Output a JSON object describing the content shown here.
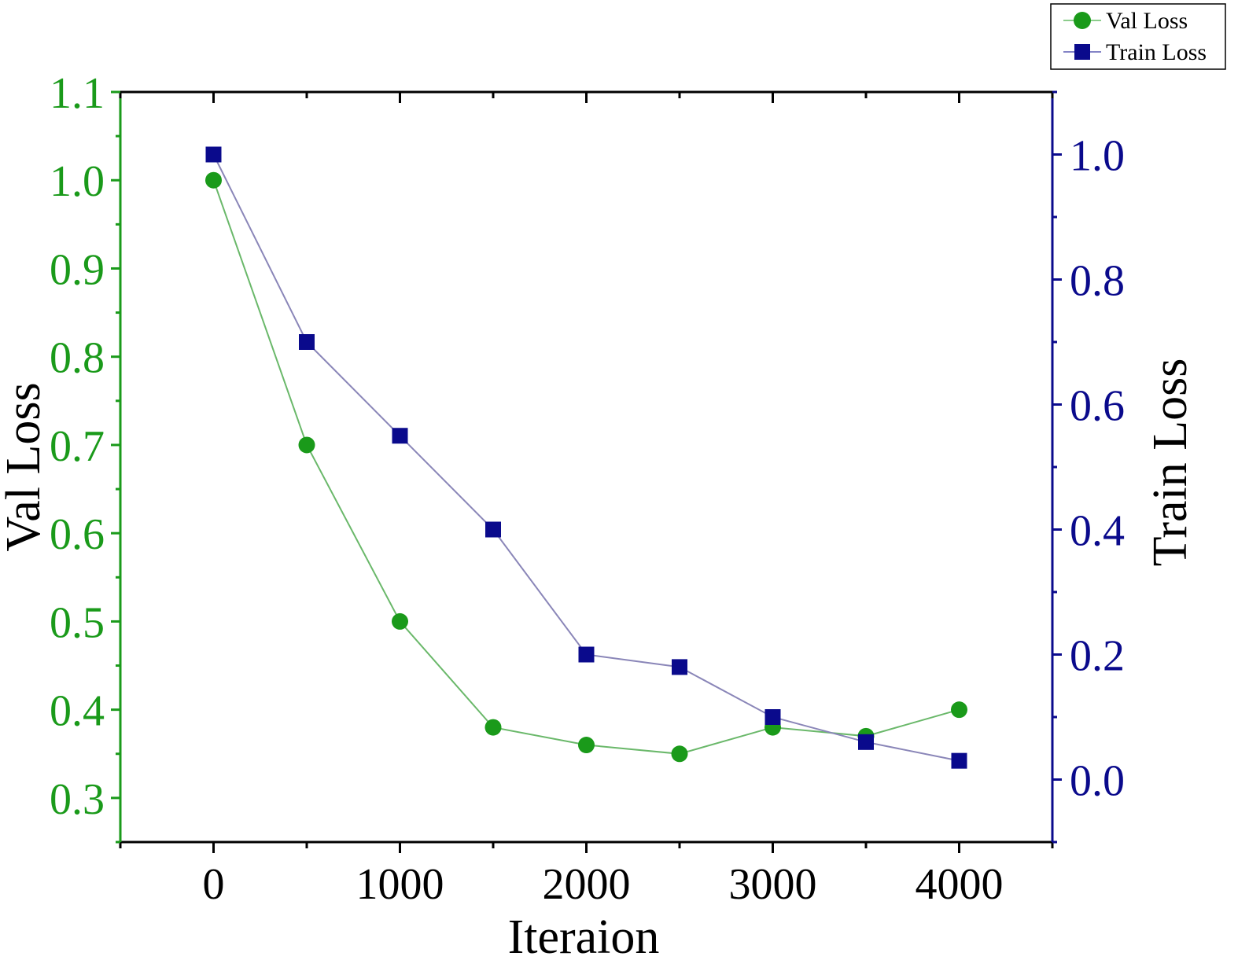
{
  "chart_data": {
    "type": "line",
    "title": "",
    "xlabel": "Iteraion",
    "ylabel_left": "Val Loss",
    "ylabel_right": "Train Loss",
    "xlim": [
      -500,
      4500
    ],
    "ylim_left": [
      0.25,
      1.1
    ],
    "ylim_right": [
      -0.1,
      1.1
    ],
    "x_ticks": [
      0,
      1000,
      2000,
      3000,
      4000
    ],
    "x_tick_labels": [
      "0",
      "1000",
      "2000",
      "3000",
      "4000"
    ],
    "y_left_ticks": [
      0.3,
      0.4,
      0.5,
      0.6,
      0.7,
      0.8,
      0.9,
      1.0,
      1.1
    ],
    "y_left_tick_labels": [
      "0.3",
      "0.4",
      "0.5",
      "0.6",
      "0.7",
      "0.8",
      "0.9",
      "1.0",
      "1.1"
    ],
    "y_right_ticks": [
      0.0,
      0.2,
      0.4,
      0.6,
      0.8,
      1.0
    ],
    "y_right_tick_labels": [
      "0.0",
      "0.2",
      "0.4",
      "0.6",
      "0.8",
      "1.0"
    ],
    "grid": false,
    "legend_position": "top-right",
    "x": [
      0,
      500,
      1000,
      1500,
      2000,
      2500,
      3000,
      3500,
      4000
    ],
    "series": [
      {
        "name": "Val Loss",
        "axis": "left",
        "marker": "circle",
        "color": "#1a9a1a",
        "values": [
          1.0,
          0.7,
          0.5,
          0.38,
          0.36,
          0.35,
          0.38,
          0.37,
          0.4
        ]
      },
      {
        "name": "Train Loss",
        "axis": "right",
        "marker": "square",
        "color": "#0a0a8c",
        "values": [
          1.0,
          0.7,
          0.55,
          0.4,
          0.2,
          0.18,
          0.1,
          0.06,
          0.03
        ]
      }
    ],
    "colors": {
      "left_axis": "#1a9a1a",
      "right_axis": "#0a0a8c",
      "frame": "#000000"
    }
  }
}
